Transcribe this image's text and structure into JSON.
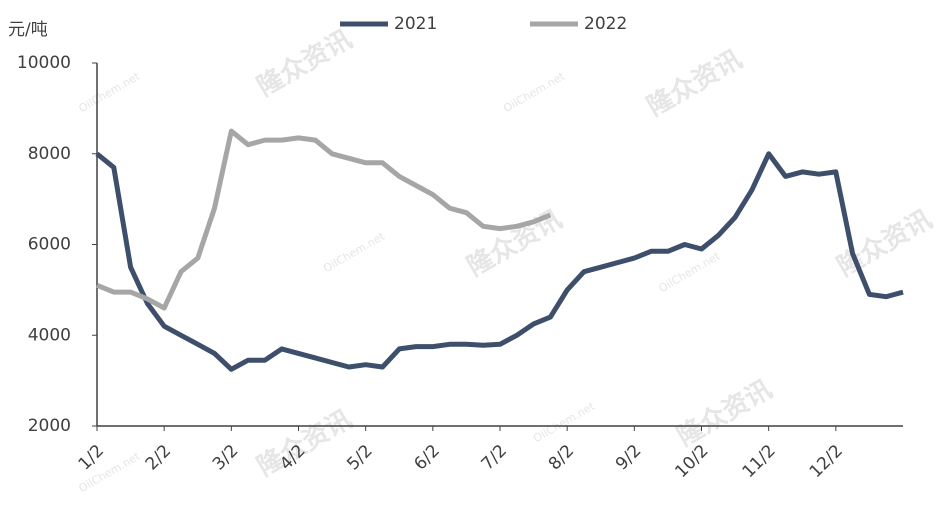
{
  "chart_data": {
    "type": "line",
    "y_label": "元/吨",
    "watermark": [
      "隆众资讯",
      "OilChem.net"
    ],
    "categories": [
      "1/2",
      null,
      null,
      null,
      "2/2",
      null,
      null,
      null,
      "3/2",
      null,
      null,
      null,
      "4/2",
      null,
      null,
      null,
      "5/2",
      null,
      null,
      null,
      "6/2",
      null,
      null,
      null,
      "7/2",
      null,
      null,
      null,
      "8/2",
      null,
      null,
      null,
      "9/2",
      null,
      null,
      null,
      "10/2",
      null,
      null,
      null,
      "11/2",
      null,
      null,
      null,
      "12/2",
      null,
      null,
      null,
      null
    ],
    "series": [
      {
        "name": "2021",
        "color": "#3d4f6b",
        "values": [
          8000,
          7700,
          5500,
          4700,
          4200,
          4000,
          3800,
          3600,
          3250,
          3450,
          3450,
          3700,
          3600,
          3500,
          3400,
          3300,
          3350,
          3300,
          3700,
          3750,
          3750,
          3800,
          3800,
          3780,
          3800,
          4000,
          4250,
          4400,
          5000,
          5400,
          5500,
          5600,
          5700,
          5850,
          5850,
          6000,
          5900,
          6200,
          6600,
          7200,
          8000,
          7500,
          7600,
          7550,
          7600,
          5800,
          4900,
          4850,
          4950
        ]
      },
      {
        "name": "2022",
        "color": "#a6a6a6",
        "values": [
          5100,
          4950,
          4950,
          4800,
          4600,
          5400,
          5700,
          6800,
          8500,
          8200,
          8300,
          8300,
          8350,
          8300,
          8000,
          7900,
          7800,
          7800,
          7500,
          7300,
          7100,
          6800,
          6700,
          6400,
          6350,
          6400,
          6500,
          6650,
          null,
          null,
          null,
          null,
          null,
          null,
          null,
          null,
          null,
          null,
          null,
          null,
          null,
          null,
          null,
          null,
          null,
          null,
          null,
          null,
          null
        ]
      }
    ],
    "ylim": [
      2000,
      10000
    ],
    "yticks": [
      2000,
      4000,
      6000,
      8000,
      10000
    ],
    "legend": "top"
  }
}
